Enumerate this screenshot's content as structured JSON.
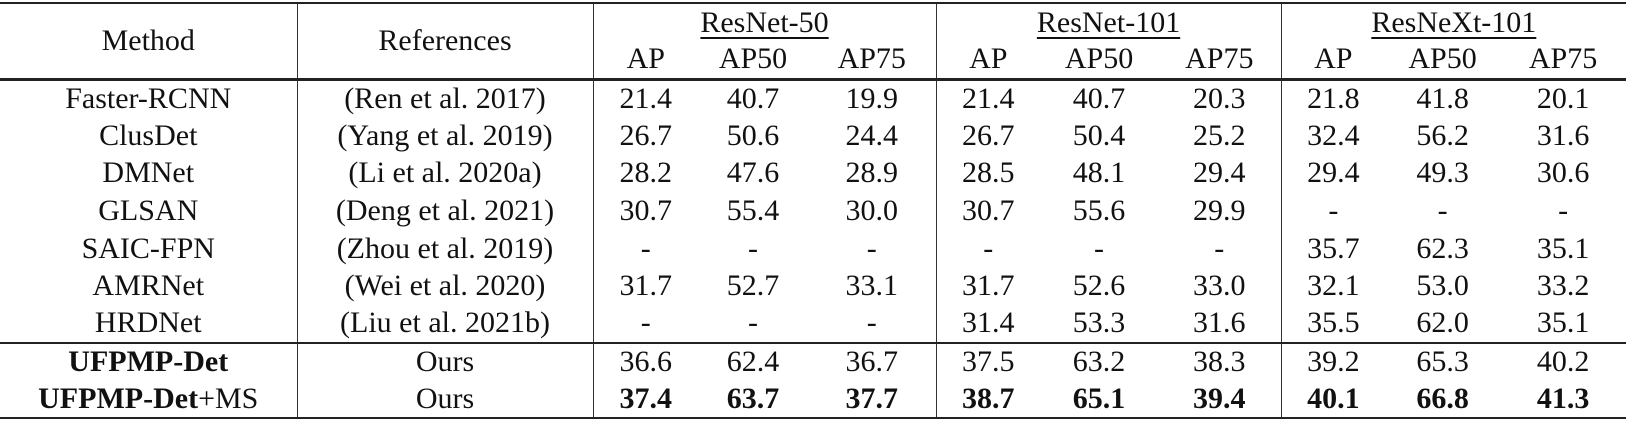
{
  "table": {
    "header": {
      "method": "Method",
      "references": "References",
      "groups": [
        "ResNet-50",
        "ResNet-101",
        "ResNeXt-101"
      ],
      "subcolumns": [
        "AP",
        "AP50",
        "AP75"
      ]
    },
    "rows": [
      {
        "method": "Faster-RCNN",
        "method_suffix": "",
        "reference": "(Ren et al. 2017)",
        "values": [
          "21.4",
          "40.7",
          "19.9",
          "21.4",
          "40.7",
          "20.3",
          "21.8",
          "41.8",
          "20.1"
        ],
        "method_bold": false,
        "values_bold": false
      },
      {
        "method": "ClusDet",
        "method_suffix": "",
        "reference": "(Yang et al. 2019)",
        "values": [
          "26.7",
          "50.6",
          "24.4",
          "26.7",
          "50.4",
          "25.2",
          "32.4",
          "56.2",
          "31.6"
        ],
        "method_bold": false,
        "values_bold": false
      },
      {
        "method": "DMNet",
        "method_suffix": "",
        "reference": "(Li et al. 2020a)",
        "values": [
          "28.2",
          "47.6",
          "28.9",
          "28.5",
          "48.1",
          "29.4",
          "29.4",
          "49.3",
          "30.6"
        ],
        "method_bold": false,
        "values_bold": false
      },
      {
        "method": "GLSAN",
        "method_suffix": "",
        "reference": "(Deng et al. 2021)",
        "values": [
          "30.7",
          "55.4",
          "30.0",
          "30.7",
          "55.6",
          "29.9",
          "-",
          "-",
          "-"
        ],
        "method_bold": false,
        "values_bold": false
      },
      {
        "method": "SAIC-FPN",
        "method_suffix": "",
        "reference": "(Zhou et al. 2019)",
        "values": [
          "-",
          "-",
          "-",
          "-",
          "-",
          "-",
          "35.7",
          "62.3",
          "35.1"
        ],
        "method_bold": false,
        "values_bold": false
      },
      {
        "method": "AMRNet",
        "method_suffix": "",
        "reference": "(Wei et al. 2020)",
        "values": [
          "31.7",
          "52.7",
          "33.1",
          "31.7",
          "52.6",
          "33.0",
          "32.1",
          "53.0",
          "33.2"
        ],
        "method_bold": false,
        "values_bold": false
      },
      {
        "method": "HRDNet",
        "method_suffix": "",
        "reference": "(Liu et al. 2021b)",
        "values": [
          "-",
          "-",
          "-",
          "31.4",
          "53.3",
          "31.6",
          "35.5",
          "62.0",
          "35.1"
        ],
        "method_bold": false,
        "values_bold": false
      },
      {
        "method": "UFPMP-Det",
        "method_suffix": "",
        "reference": "Ours",
        "values": [
          "36.6",
          "62.4",
          "36.7",
          "37.5",
          "63.2",
          "38.3",
          "39.2",
          "65.3",
          "40.2"
        ],
        "method_bold": true,
        "values_bold": false
      },
      {
        "method": "UFPMP-Det",
        "method_suffix": "+MS",
        "reference": "Ours",
        "values": [
          "37.4",
          "63.7",
          "37.7",
          "38.7",
          "65.1",
          "39.4",
          "40.1",
          "66.8",
          "41.3"
        ],
        "method_bold": true,
        "values_bold": true
      }
    ]
  }
}
